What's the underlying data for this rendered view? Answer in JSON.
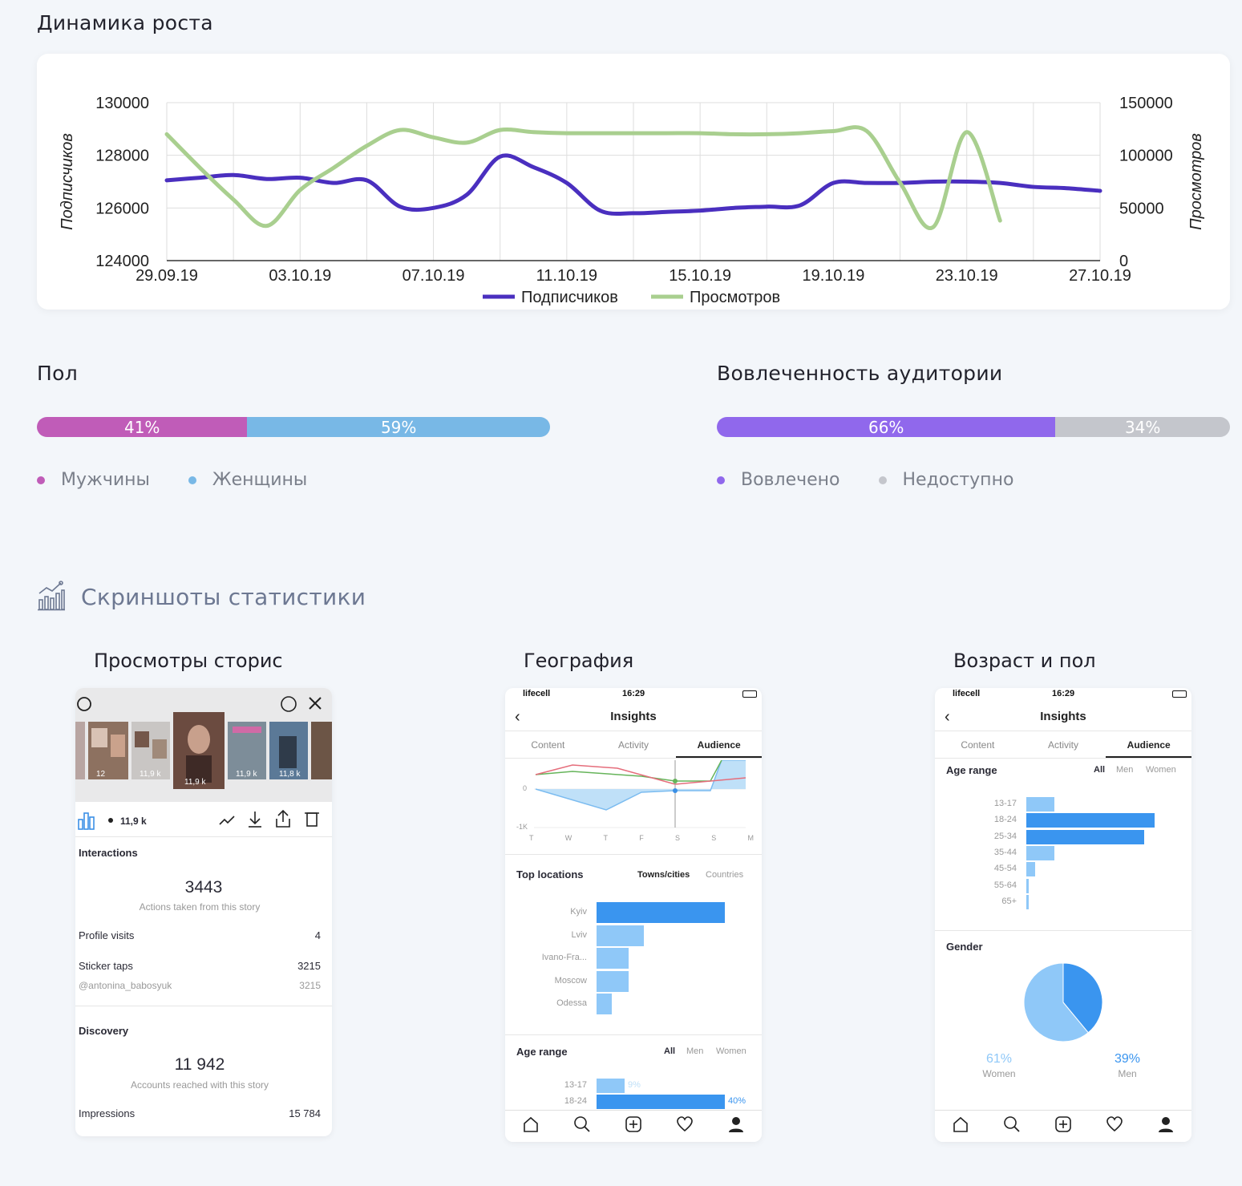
{
  "growth": {
    "title": "Динамика роста",
    "chart_data": {
      "type": "line",
      "x": [
        "29.09.19",
        "30.09.19",
        "01.10.19",
        "02.10.19",
        "03.10.19",
        "04.10.19",
        "05.10.19",
        "06.10.19",
        "07.10.19",
        "08.10.19",
        "09.10.19",
        "10.10.19",
        "11.10.19",
        "12.10.19",
        "13.10.19",
        "14.10.19",
        "15.10.19",
        "16.10.19",
        "17.10.19",
        "18.10.19",
        "19.10.19",
        "20.10.19",
        "21.10.19",
        "22.10.19",
        "23.10.19",
        "24.10.19",
        "25.10.19",
        "26.10.19",
        "27.10.19"
      ],
      "x_tick_labels": [
        "29.09.19",
        "03.10.19",
        "07.10.19",
        "11.10.19",
        "15.10.19",
        "19.10.19",
        "23.10.19",
        "27.10.19"
      ],
      "ylabel_left": "Подписчиков",
      "ylabel_right": "Просмотров",
      "ylim_left": [
        124000,
        130000
      ],
      "ylim_right": [
        0,
        150000
      ],
      "yticks_left": [
        "130000",
        "128000",
        "126000",
        "124000"
      ],
      "yticks_right": [
        "150000",
        "100000",
        "50000",
        "0"
      ],
      "grid": true,
      "legend_position": "bottom",
      "series": [
        {
          "name": "Подписчиков",
          "axis": "left",
          "color": "#4a2fbf",
          "values": [
            127050,
            127150,
            127250,
            127100,
            127150,
            126950,
            127050,
            126050,
            126000,
            126500,
            127950,
            127550,
            126950,
            125900,
            125800,
            125850,
            125900,
            126000,
            126050,
            126100,
            126950,
            126950,
            126950,
            127000,
            127000,
            126950,
            126800,
            126750,
            126650
          ]
        },
        {
          "name": "Просмотров",
          "axis": "right",
          "color": "#a9cf8f",
          "values": [
            120000,
            88000,
            58000,
            33000,
            67000,
            88000,
            109000,
            124000,
            117000,
            112000,
            124000,
            122000,
            121000,
            121000,
            121000,
            121000,
            121000,
            120000,
            120000,
            121000,
            123000,
            123000,
            74000,
            32000,
            122000,
            38000,
            null,
            null,
            null
          ]
        }
      ]
    }
  },
  "gender": {
    "title": "Пол",
    "segments": [
      {
        "label": "41%",
        "value": 41,
        "color": "#c05cb8"
      },
      {
        "label": "59%",
        "value": 59,
        "color": "#78b8e6"
      }
    ],
    "legend": [
      "Мужчины",
      "Женщины"
    ]
  },
  "engagement": {
    "title": "Вовлеченность аудитории",
    "segments": [
      {
        "label": "66%",
        "value": 66,
        "color": "#9068ec"
      },
      {
        "label": "34%",
        "value": 34,
        "color": "#c4c6cc"
      }
    ],
    "legend": [
      "Вовлечено",
      "Недоступно"
    ]
  },
  "screenshots": {
    "title": "Скриншоты статистики",
    "icon": "bar-chart-icon",
    "items": [
      {
        "title": "Просмотры сторис",
        "thumb_views": [
          "12",
          "11,9 k",
          "11,9 k",
          "11,9 k",
          "11,8 k"
        ],
        "views": "11,9 k",
        "interactions_label": "Interactions",
        "interactions_value": "3443",
        "interactions_sub": "Actions taken from this story",
        "profile_visits_label": "Profile visits",
        "profile_visits_value": "4",
        "sticker_taps_label": "Sticker taps",
        "sticker_taps_value": "3215",
        "sticker_user": "@antonina_babosyuk",
        "sticker_user_value": "3215",
        "discovery_label": "Discovery",
        "discovery_value": "11 942",
        "discovery_sub": "Accounts reached with this story",
        "impressions_label": "Impressions",
        "impressions_value": "15 784"
      },
      {
        "title": "География",
        "carrier": "lifecell",
        "time": "16:29",
        "header": "Insights",
        "tabs": [
          "Content",
          "Activity",
          "Audience"
        ],
        "mini_y": [
          "0",
          "-1K"
        ],
        "mini_x": [
          "T",
          "W",
          "T",
          "F",
          "S",
          "S",
          "M"
        ],
        "top_locations_label": "Top locations",
        "loc_tabs": [
          "Towns/cities",
          "Countries"
        ],
        "locations": [
          {
            "name": "Kyiv",
            "value": 1.0
          },
          {
            "name": "Lviv",
            "value": 0.37
          },
          {
            "name": "Ivano-Fra...",
            "value": 0.25
          },
          {
            "name": "Moscow",
            "value": 0.25
          },
          {
            "name": "Odessa",
            "value": 0.12
          }
        ],
        "age_label": "Age range",
        "age_tabs": [
          "All",
          "Men",
          "Women"
        ],
        "ages": [
          {
            "name": "13-17",
            "pct": "9%",
            "value": 0.22
          },
          {
            "name": "18-24",
            "pct": "40%",
            "value": 1.0
          }
        ]
      },
      {
        "title": "Возраст и пол",
        "carrier": "lifecell",
        "time": "16:29",
        "header": "Insights",
        "tabs": [
          "Content",
          "Activity",
          "Audience"
        ],
        "age_label": "Age range",
        "age_tabs": [
          "All",
          "Men",
          "Women"
        ],
        "ages": [
          {
            "name": "13-17",
            "value": 0.22
          },
          {
            "name": "18-24",
            "value": 1.0
          },
          {
            "name": "25-34",
            "value": 0.92
          },
          {
            "name": "35-44",
            "value": 0.22
          },
          {
            "name": "45-54",
            "value": 0.07
          },
          {
            "name": "55-64",
            "value": 0.02
          },
          {
            "name": "65+",
            "value": 0.02
          }
        ],
        "gender_label": "Gender",
        "pie": [
          {
            "pct": "61%",
            "label": "Women",
            "value": 61,
            "color": "#8fc8f8"
          },
          {
            "pct": "39%",
            "label": "Men",
            "value": 39,
            "color": "#3a95ef"
          }
        ]
      }
    ]
  }
}
